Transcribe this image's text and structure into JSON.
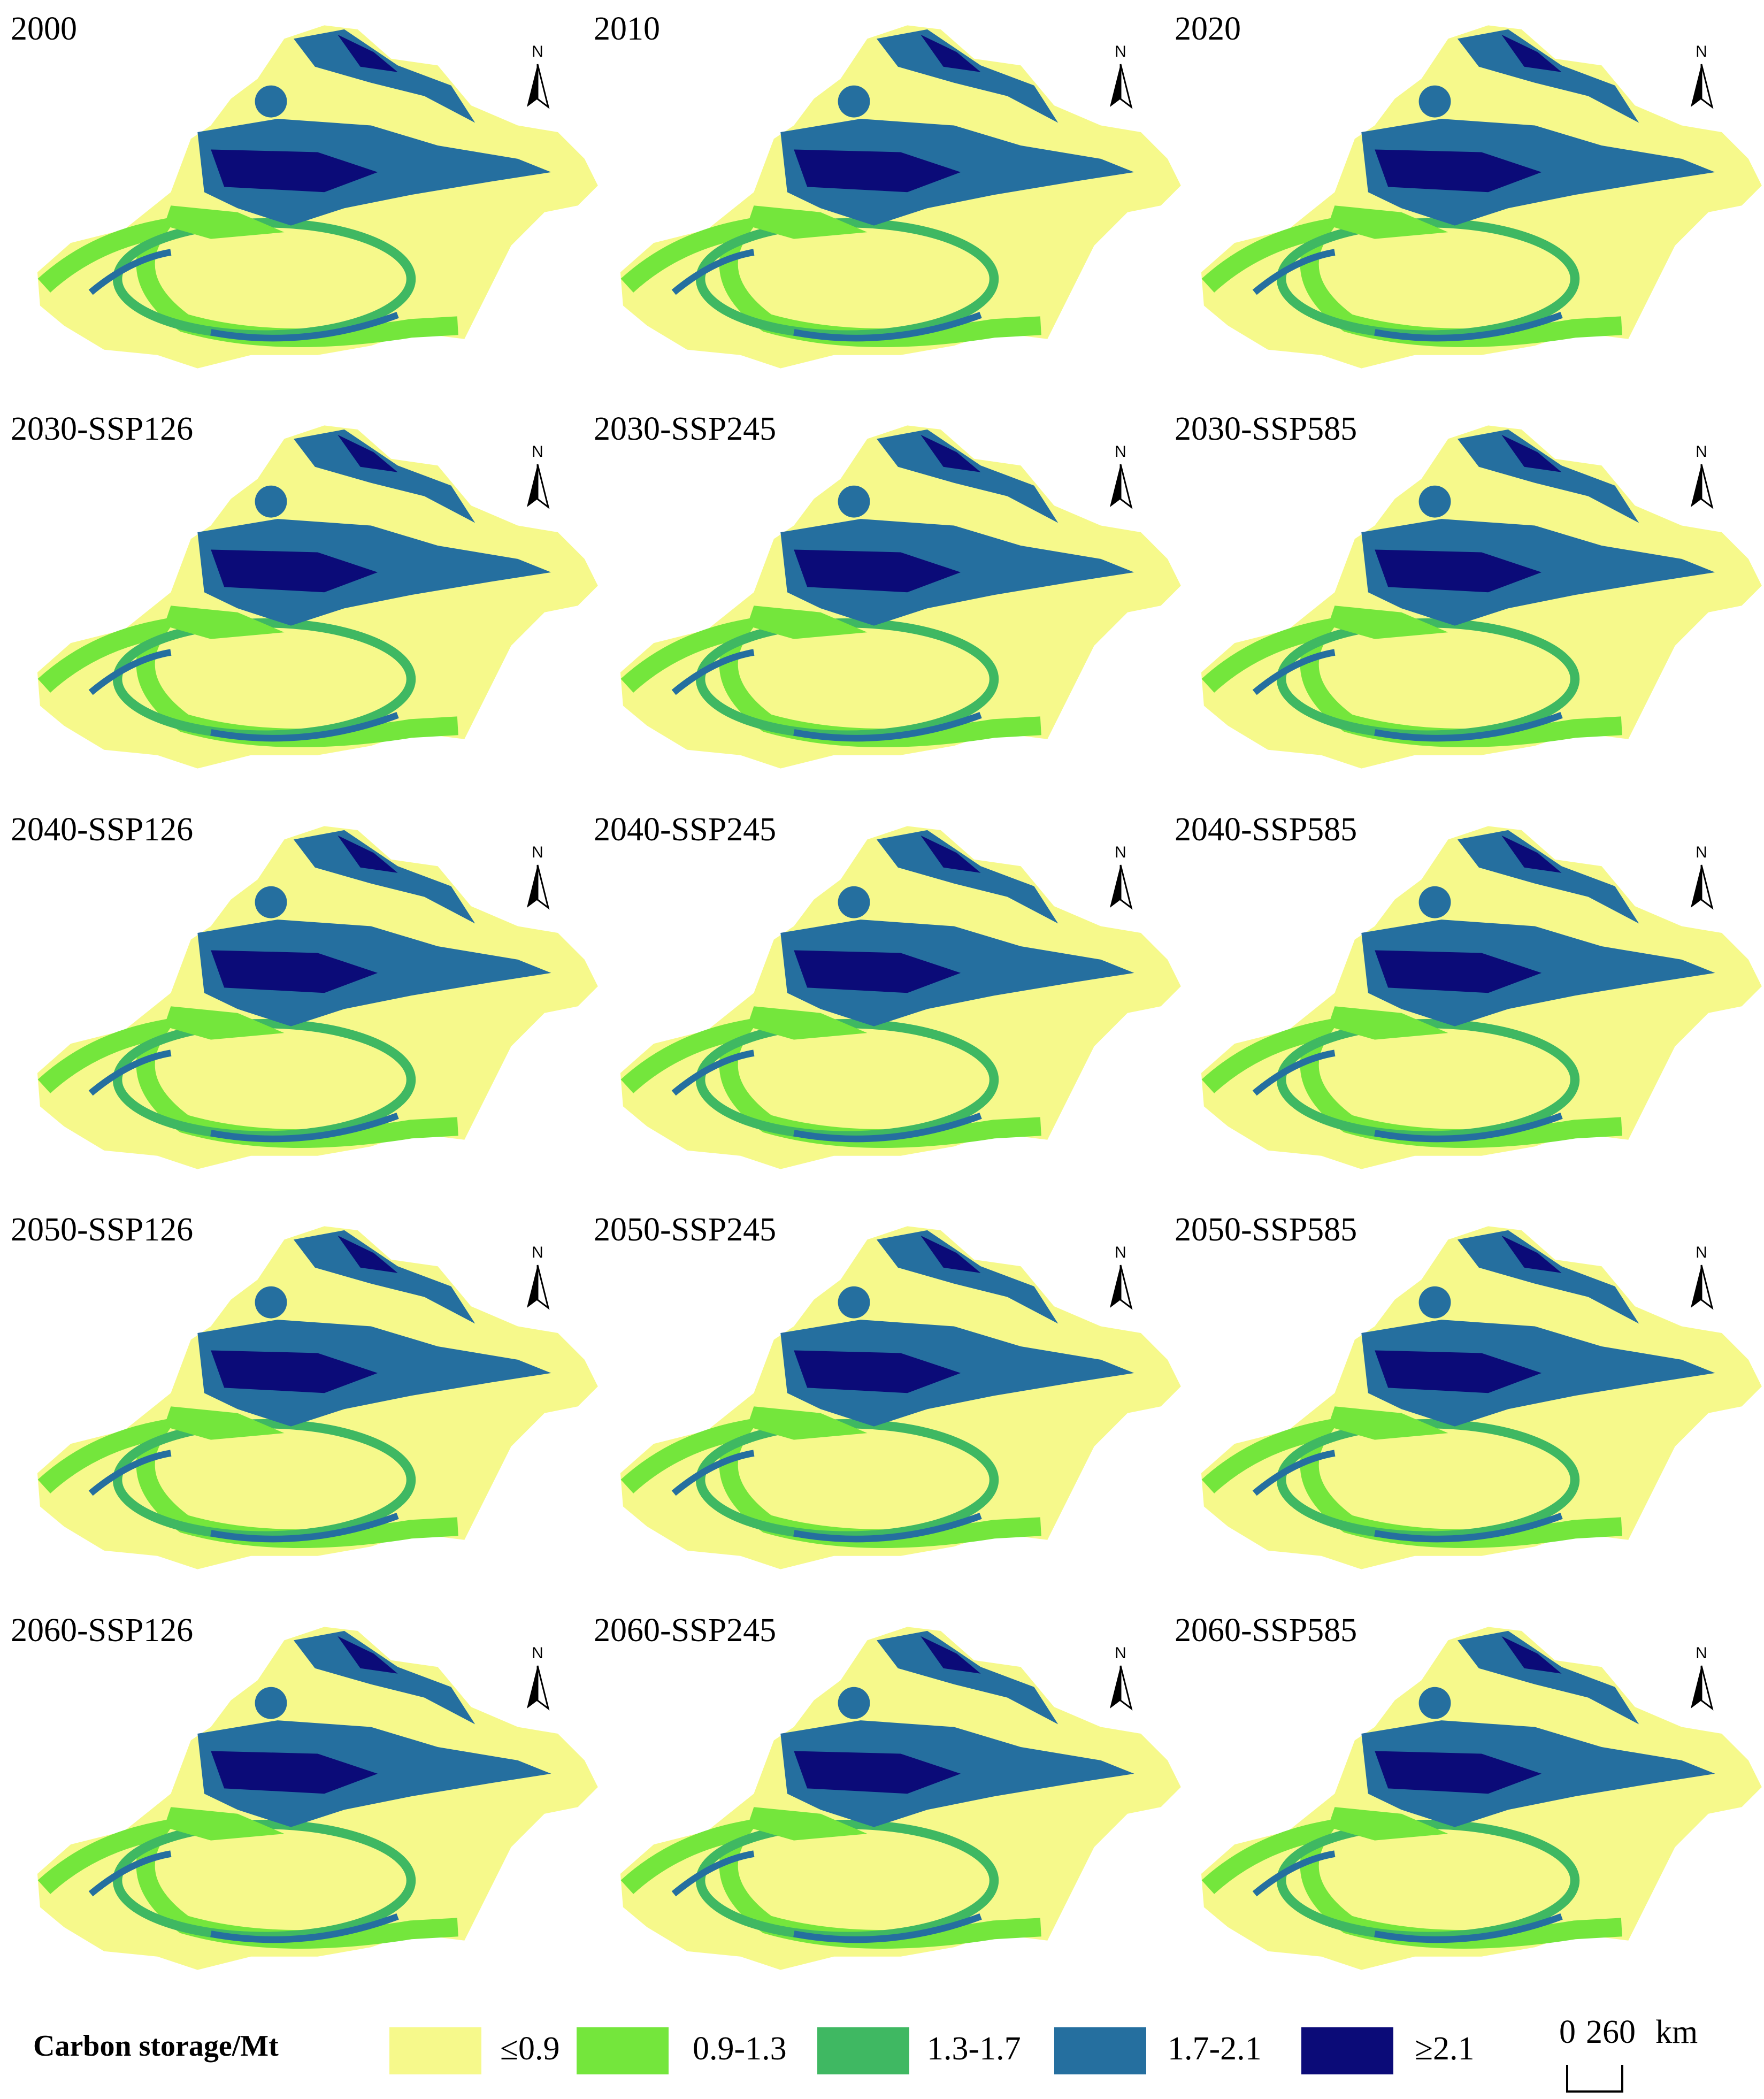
{
  "panels": [
    "2000",
    "2010",
    "2020",
    "2030-SSP126",
    "2030-SSP245",
    "2030-SSP585",
    "2040-SSP126",
    "2040-SSP245",
    "2040-SSP585",
    "2050-SSP126",
    "2050-SSP245",
    "2050-SSP585",
    "2060-SSP126",
    "2060-SSP245",
    "2060-SSP585"
  ],
  "north_label": "N",
  "legend": {
    "title": "Carbon storage/Mt",
    "items": [
      {
        "label": "≤0.9",
        "color": "#f6f98b"
      },
      {
        "label": "0.9-1.3",
        "color": "#74e63c"
      },
      {
        "label": "1.3-1.7",
        "color": "#3fb862"
      },
      {
        "label": "1.7-2.1",
        "color": "#256f9f"
      },
      {
        "label": "≥2.1",
        "color": "#0b0b78"
      }
    ]
  },
  "scale_bar": {
    "labels": [
      "0",
      "260",
      "km"
    ]
  }
}
